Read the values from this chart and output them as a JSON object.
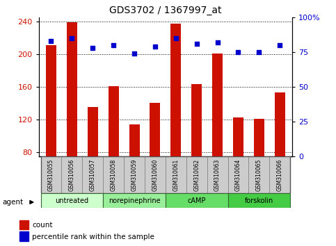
{
  "title": "GDS3702 / 1367997_at",
  "samples": [
    "GSM310055",
    "GSM310056",
    "GSM310057",
    "GSM310058",
    "GSM310059",
    "GSM310060",
    "GSM310061",
    "GSM310062",
    "GSM310063",
    "GSM310064",
    "GSM310065",
    "GSM310066"
  ],
  "count_values": [
    211,
    239,
    135,
    161,
    114,
    140,
    237,
    163,
    201,
    122,
    121,
    153
  ],
  "percentile_values": [
    83,
    85,
    78,
    80,
    74,
    79,
    85,
    81,
    82,
    75,
    75,
    80
  ],
  "ylim_left": [
    75,
    245
  ],
  "ylim_right": [
    0,
    100
  ],
  "yticks_left": [
    80,
    120,
    160,
    200,
    240
  ],
  "yticks_right": [
    0,
    25,
    50,
    75,
    100
  ],
  "bar_color": "#CC1100",
  "dot_color": "#0000CC",
  "title_fontsize": 10,
  "agent_groups": [
    {
      "label": "untreated",
      "start": 0,
      "end": 3,
      "color": "#CCFFCC"
    },
    {
      "label": "norepinephrine",
      "start": 3,
      "end": 6,
      "color": "#99EE99"
    },
    {
      "label": "cAMP",
      "start": 6,
      "end": 9,
      "color": "#66DD66"
    },
    {
      "label": "forskolin",
      "start": 9,
      "end": 12,
      "color": "#44CC44"
    }
  ],
  "legend_items": [
    {
      "label": "count",
      "color": "#CC1100"
    },
    {
      "label": "percentile rank within the sample",
      "color": "#0000CC"
    }
  ],
  "bar_width": 0.5,
  "background_color": "#FFFFFF"
}
